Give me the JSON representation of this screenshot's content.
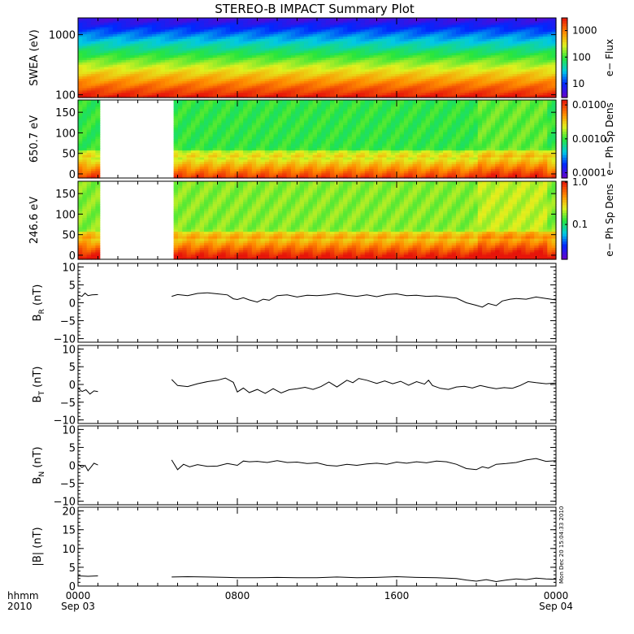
{
  "title": "STEREO-B IMPACT Summary Plot",
  "time_axis": {
    "ticks": [
      {
        "hour": 0,
        "label": "0000",
        "sublabel": "Sep 03"
      },
      {
        "hour": 8,
        "label": "0800",
        "sublabel": ""
      },
      {
        "hour": 16,
        "label": "1600",
        "sublabel": ""
      },
      {
        "hour": 24,
        "label": "0000",
        "sublabel": "Sep 04"
      }
    ],
    "corner_label_1": "hhmm",
    "corner_label_2": "2010",
    "range_hours": [
      0,
      24
    ]
  },
  "footer_stamp": "Mon Dec 20 15:04:33 2010",
  "chart_data": [
    {
      "type": "heatmap",
      "id": "swea",
      "ylabel": "SWEA (eV)",
      "yscale": "log",
      "ylim": [
        90,
        1900
      ],
      "yticks": [
        {
          "v": 100,
          "label": "100"
        },
        {
          "v": 1000,
          "label": "1000"
        }
      ],
      "colorbar": {
        "label": "e− Flux",
        "scale": "log",
        "range": [
          3,
          3000
        ],
        "ticks": [
          {
            "v": 10,
            "label": "10"
          },
          {
            "v": 100,
            "label": "100"
          },
          {
            "v": 1000,
            "label": "1000"
          }
        ]
      },
      "gaps_hours": []
    },
    {
      "type": "heatmap",
      "id": "pad650",
      "ylabel": "650.7 eV",
      "yscale": "linear",
      "ylim": [
        -10,
        180
      ],
      "yticks": [
        {
          "v": 0,
          "label": "0"
        },
        {
          "v": 50,
          "label": "50"
        },
        {
          "v": 100,
          "label": "100"
        },
        {
          "v": 150,
          "label": "150"
        }
      ],
      "colorbar": {
        "label": "e− Ph Sp Dens",
        "scale": "log",
        "range": [
          7e-05,
          0.014
        ],
        "ticks": [
          {
            "v": 0.0001,
            "label": "0.0001"
          },
          {
            "v": 0.001,
            "label": "0.0010"
          },
          {
            "v": 0.01,
            "label": "0.0100"
          }
        ]
      },
      "gaps_hours": [
        [
          1.0,
          4.7
        ]
      ]
    },
    {
      "type": "heatmap",
      "id": "pad246",
      "ylabel": "246.6 eV",
      "yscale": "linear",
      "ylim": [
        -10,
        180
      ],
      "yticks": [
        {
          "v": 0,
          "label": "0"
        },
        {
          "v": 50,
          "label": "50"
        },
        {
          "v": 100,
          "label": "100"
        },
        {
          "v": 150,
          "label": "150"
        }
      ],
      "colorbar": {
        "label": "e− Ph Sp Dens",
        "scale": "log",
        "range": [
          0.015,
          1.05
        ],
        "ticks": [
          {
            "v": 0.1,
            "label": "0.1"
          },
          {
            "v": 1.0,
            "label": "1.0"
          }
        ]
      },
      "gaps_hours": [
        [
          1.0,
          4.7
        ]
      ]
    },
    {
      "type": "line",
      "id": "br",
      "ylabel_main": "B",
      "ylabel_sub": "R",
      "ylabel_unit": " (nT)",
      "ylim": [
        -11,
        11
      ],
      "yticks": [
        {
          "v": -10,
          "label": "−10"
        },
        {
          "v": -5,
          "label": "−5"
        },
        {
          "v": 0,
          "label": "0"
        },
        {
          "v": 5,
          "label": "5"
        },
        {
          "v": 10,
          "label": "10"
        }
      ],
      "segments": [
        [
          [
            0.0,
            2.1
          ],
          [
            0.2,
            1.8
          ],
          [
            0.35,
            2.7
          ],
          [
            0.5,
            2.0
          ],
          [
            0.7,
            2.2
          ],
          [
            1.0,
            2.3
          ]
        ],
        [
          [
            4.7,
            1.8
          ],
          [
            5.0,
            2.3
          ],
          [
            5.5,
            2.0
          ],
          [
            6.0,
            2.6
          ],
          [
            6.5,
            2.8
          ],
          [
            7.0,
            2.5
          ],
          [
            7.5,
            2.2
          ],
          [
            7.8,
            1.1
          ],
          [
            8.0,
            0.9
          ],
          [
            8.3,
            1.4
          ],
          [
            8.6,
            0.8
          ],
          [
            9.0,
            0.2
          ],
          [
            9.3,
            1.0
          ],
          [
            9.6,
            0.7
          ],
          [
            10.0,
            2.0
          ],
          [
            10.5,
            2.2
          ],
          [
            11.0,
            1.6
          ],
          [
            11.5,
            2.1
          ],
          [
            12.0,
            2.0
          ],
          [
            12.5,
            2.2
          ],
          [
            13.0,
            2.6
          ],
          [
            13.5,
            2.1
          ],
          [
            14.0,
            1.8
          ],
          [
            14.5,
            2.2
          ],
          [
            15.0,
            1.7
          ],
          [
            15.5,
            2.3
          ],
          [
            16.0,
            2.5
          ],
          [
            16.5,
            2.0
          ],
          [
            17.0,
            2.1
          ],
          [
            17.5,
            1.8
          ],
          [
            18.0,
            1.9
          ],
          [
            18.5,
            1.6
          ],
          [
            19.0,
            1.3
          ],
          [
            19.5,
            0.0
          ],
          [
            20.0,
            -0.7
          ],
          [
            20.3,
            -1.2
          ],
          [
            20.6,
            -0.2
          ],
          [
            21.0,
            -0.8
          ],
          [
            21.3,
            0.5
          ],
          [
            21.7,
            1.0
          ],
          [
            22.0,
            1.2
          ],
          [
            22.5,
            1.0
          ],
          [
            23.0,
            1.6
          ],
          [
            23.5,
            1.2
          ],
          [
            24.0,
            0.8
          ]
        ]
      ]
    },
    {
      "type": "line",
      "id": "bt",
      "ylabel_main": "B",
      "ylabel_sub": "T",
      "ylabel_unit": " (nT)",
      "ylim": [
        -11,
        11
      ],
      "yticks": [
        {
          "v": -10,
          "label": "−10"
        },
        {
          "v": -5,
          "label": "−5"
        },
        {
          "v": 0,
          "label": "0"
        },
        {
          "v": 5,
          "label": "5"
        },
        {
          "v": 10,
          "label": "10"
        }
      ],
      "segments": [
        [
          [
            0.0,
            -1.0
          ],
          [
            0.2,
            -2.0
          ],
          [
            0.4,
            -1.5
          ],
          [
            0.6,
            -2.7
          ],
          [
            0.8,
            -1.8
          ],
          [
            1.0,
            -2.0
          ]
        ],
        [
          [
            4.7,
            1.4
          ],
          [
            5.0,
            -0.3
          ],
          [
            5.5,
            -0.6
          ],
          [
            6.0,
            0.2
          ],
          [
            6.5,
            0.8
          ],
          [
            7.0,
            1.2
          ],
          [
            7.4,
            1.8
          ],
          [
            7.8,
            0.6
          ],
          [
            8.0,
            -2.1
          ],
          [
            8.3,
            -1.0
          ],
          [
            8.6,
            -2.3
          ],
          [
            9.0,
            -1.4
          ],
          [
            9.4,
            -2.5
          ],
          [
            9.8,
            -1.2
          ],
          [
            10.2,
            -2.4
          ],
          [
            10.6,
            -1.5
          ],
          [
            11.0,
            -1.2
          ],
          [
            11.4,
            -0.8
          ],
          [
            11.8,
            -1.4
          ],
          [
            12.2,
            -0.6
          ],
          [
            12.6,
            0.7
          ],
          [
            13.0,
            -0.7
          ],
          [
            13.5,
            1.2
          ],
          [
            13.8,
            0.5
          ],
          [
            14.1,
            1.7
          ],
          [
            14.5,
            1.2
          ],
          [
            15.0,
            0.3
          ],
          [
            15.4,
            1.0
          ],
          [
            15.8,
            0.2
          ],
          [
            16.2,
            0.9
          ],
          [
            16.6,
            -0.2
          ],
          [
            17.0,
            0.8
          ],
          [
            17.4,
            0.1
          ],
          [
            17.6,
            1.2
          ],
          [
            17.8,
            -0.3
          ],
          [
            18.2,
            -1.1
          ],
          [
            18.6,
            -1.4
          ],
          [
            19.0,
            -0.7
          ],
          [
            19.4,
            -0.5
          ],
          [
            19.8,
            -1.0
          ],
          [
            20.2,
            -0.3
          ],
          [
            20.6,
            -0.8
          ],
          [
            21.0,
            -1.2
          ],
          [
            21.4,
            -0.9
          ],
          [
            21.8,
            -1.1
          ],
          [
            22.2,
            -0.3
          ],
          [
            22.6,
            0.8
          ],
          [
            23.0,
            0.5
          ],
          [
            23.5,
            0.2
          ],
          [
            24.0,
            0.4
          ]
        ]
      ]
    },
    {
      "type": "line",
      "id": "bn",
      "ylabel_main": "B",
      "ylabel_sub": "N",
      "ylabel_unit": " (nT)",
      "ylim": [
        -11,
        11
      ],
      "yticks": [
        {
          "v": -10,
          "label": "−10"
        },
        {
          "v": -5,
          "label": "−5"
        },
        {
          "v": 0,
          "label": "0"
        },
        {
          "v": 5,
          "label": "5"
        },
        {
          "v": 10,
          "label": "10"
        }
      ],
      "segments": [
        [
          [
            0.0,
            0.3
          ],
          [
            0.2,
            -0.6
          ],
          [
            0.35,
            0.0
          ],
          [
            0.5,
            -1.5
          ],
          [
            0.65,
            -0.5
          ],
          [
            0.8,
            0.6
          ],
          [
            1.0,
            0.1
          ]
        ],
        [
          [
            4.7,
            1.5
          ],
          [
            5.0,
            -1.2
          ],
          [
            5.3,
            0.3
          ],
          [
            5.6,
            -0.4
          ],
          [
            6.0,
            0.2
          ],
          [
            6.5,
            -0.3
          ],
          [
            7.0,
            -0.2
          ],
          [
            7.5,
            0.5
          ],
          [
            8.0,
            0.0
          ],
          [
            8.3,
            1.2
          ],
          [
            8.6,
            1.0
          ],
          [
            9.0,
            1.1
          ],
          [
            9.5,
            0.8
          ],
          [
            10.0,
            1.3
          ],
          [
            10.5,
            0.8
          ],
          [
            11.0,
            0.9
          ],
          [
            11.5,
            0.5
          ],
          [
            12.0,
            0.7
          ],
          [
            12.5,
            0.0
          ],
          [
            13.0,
            -0.2
          ],
          [
            13.5,
            0.3
          ],
          [
            14.0,
            0.0
          ],
          [
            14.5,
            0.4
          ],
          [
            15.0,
            0.6
          ],
          [
            15.5,
            0.3
          ],
          [
            16.0,
            0.9
          ],
          [
            16.5,
            0.6
          ],
          [
            17.0,
            1.0
          ],
          [
            17.5,
            0.7
          ],
          [
            18.0,
            1.2
          ],
          [
            18.5,
            1.0
          ],
          [
            19.0,
            0.3
          ],
          [
            19.5,
            -0.9
          ],
          [
            20.0,
            -1.2
          ],
          [
            20.3,
            -0.4
          ],
          [
            20.6,
            -0.8
          ],
          [
            21.0,
            0.3
          ],
          [
            21.5,
            0.5
          ],
          [
            22.0,
            0.8
          ],
          [
            22.5,
            1.5
          ],
          [
            23.0,
            1.9
          ],
          [
            23.5,
            1.1
          ],
          [
            24.0,
            1.3
          ]
        ]
      ]
    },
    {
      "type": "line",
      "id": "bmag",
      "ylabel_main": "|B| (nT)",
      "ylim": [
        0,
        21
      ],
      "yticks": [
        {
          "v": 0,
          "label": "0"
        },
        {
          "v": 5,
          "label": "5"
        },
        {
          "v": 10,
          "label": "10"
        },
        {
          "v": 15,
          "label": "15"
        },
        {
          "v": 20,
          "label": "20"
        }
      ],
      "segments": [
        [
          [
            0.0,
            2.7
          ],
          [
            0.5,
            2.6
          ],
          [
            1.0,
            2.7
          ]
        ],
        [
          [
            4.7,
            2.4
          ],
          [
            5.5,
            2.5
          ],
          [
            6.5,
            2.4
          ],
          [
            7.5,
            2.3
          ],
          [
            8.0,
            2.2
          ],
          [
            9.0,
            2.2
          ],
          [
            10.0,
            2.3
          ],
          [
            11.0,
            2.2
          ],
          [
            12.0,
            2.2
          ],
          [
            13.0,
            2.4
          ],
          [
            14.0,
            2.2
          ],
          [
            15.0,
            2.3
          ],
          [
            16.0,
            2.5
          ],
          [
            17.0,
            2.3
          ],
          [
            18.0,
            2.2
          ],
          [
            19.0,
            2.0
          ],
          [
            19.5,
            1.6
          ],
          [
            20.0,
            1.3
          ],
          [
            20.5,
            1.7
          ],
          [
            21.0,
            1.2
          ],
          [
            21.5,
            1.6
          ],
          [
            22.0,
            1.9
          ],
          [
            22.5,
            1.7
          ],
          [
            23.0,
            2.1
          ],
          [
            23.5,
            1.9
          ],
          [
            24.0,
            1.8
          ]
        ]
      ]
    }
  ]
}
